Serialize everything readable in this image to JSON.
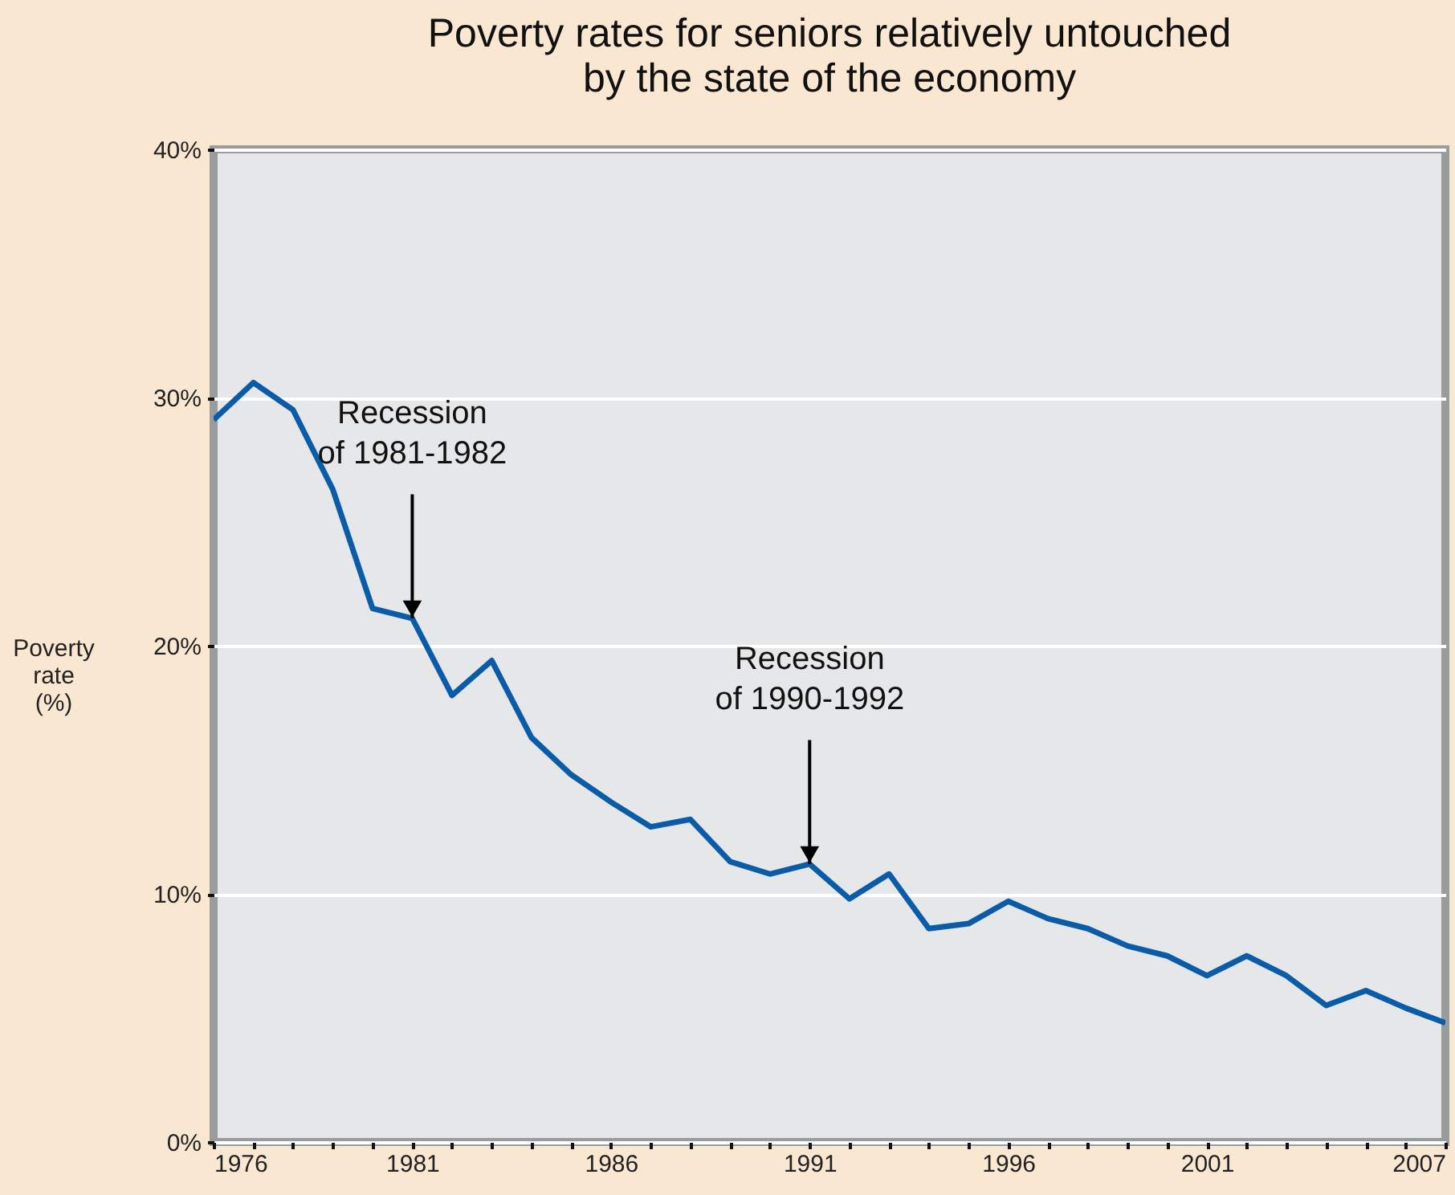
{
  "chart_data": {
    "type": "line",
    "title": "Poverty rates for seniors relatively untouched\nby the state of the economy",
    "ylabel": "Poverty\nrate\n(%)",
    "x": [
      1976,
      1977,
      1978,
      1979,
      1980,
      1981,
      1982,
      1983,
      1984,
      1985,
      1986,
      1987,
      1988,
      1989,
      1990,
      1991,
      1992,
      1993,
      1994,
      1995,
      1996,
      1997,
      1998,
      1999,
      2000,
      2001,
      2002,
      2003,
      2004,
      2005,
      2006,
      2007
    ],
    "series": [
      {
        "color": "#0a5ca8",
        "values": [
          29.1,
          30.6,
          29.5,
          26.3,
          21.5,
          21.1,
          18.0,
          19.4,
          16.3,
          14.8,
          13.7,
          12.7,
          13.0,
          11.3,
          10.8,
          11.2,
          9.8,
          10.8,
          8.6,
          8.8,
          9.7,
          9.0,
          8.6,
          7.9,
          7.5,
          6.7,
          7.5,
          6.7,
          5.5,
          6.1,
          5.4,
          4.8
        ]
      }
    ],
    "xlim": [
      1976,
      2007
    ],
    "xticks": [
      1976,
      {
        "value": 1977,
        "label": null
      },
      {
        "value": 1978,
        "label": null
      },
      {
        "value": 1979,
        "label": null
      },
      {
        "value": 1980,
        "label": null
      },
      1981,
      {
        "value": 1982,
        "label": null
      },
      {
        "value": 1983,
        "label": null
      },
      {
        "value": 1984,
        "label": null
      },
      {
        "value": 1985,
        "label": null
      },
      1986,
      {
        "value": 1987,
        "label": null
      },
      {
        "value": 1988,
        "label": null
      },
      {
        "value": 1989,
        "label": null
      },
      {
        "value": 1990,
        "label": null
      },
      1991,
      {
        "value": 1992,
        "label": null
      },
      {
        "value": 1993,
        "label": null
      },
      {
        "value": 1994,
        "label": null
      },
      {
        "value": 1995,
        "label": null
      },
      1996,
      {
        "value": 1997,
        "label": null
      },
      {
        "value": 1998,
        "label": null
      },
      {
        "value": 1999,
        "label": null
      },
      {
        "value": 2000,
        "label": null
      },
      2001,
      {
        "value": 2002,
        "label": null
      },
      {
        "value": 2003,
        "label": null
      },
      {
        "value": 2004,
        "label": null
      },
      {
        "value": 2005,
        "label": null
      },
      {
        "value": 2006,
        "label": null
      },
      2007
    ],
    "ylim": [
      0,
      40
    ],
    "yticks": [
      {
        "value": 0,
        "label": "0%"
      },
      {
        "value": 10,
        "label": "10%"
      },
      {
        "value": 20,
        "label": "20%"
      },
      {
        "value": 30,
        "label": "30%"
      },
      {
        "value": 40,
        "label": "40%"
      }
    ],
    "grid": "y",
    "annotations": [
      {
        "text": "Recession\nof 1981-1982",
        "x": 1981,
        "y": 21.1
      },
      {
        "text": "Recession\nof 1990-1992",
        "x": 1991,
        "y": 11.2
      }
    ]
  }
}
